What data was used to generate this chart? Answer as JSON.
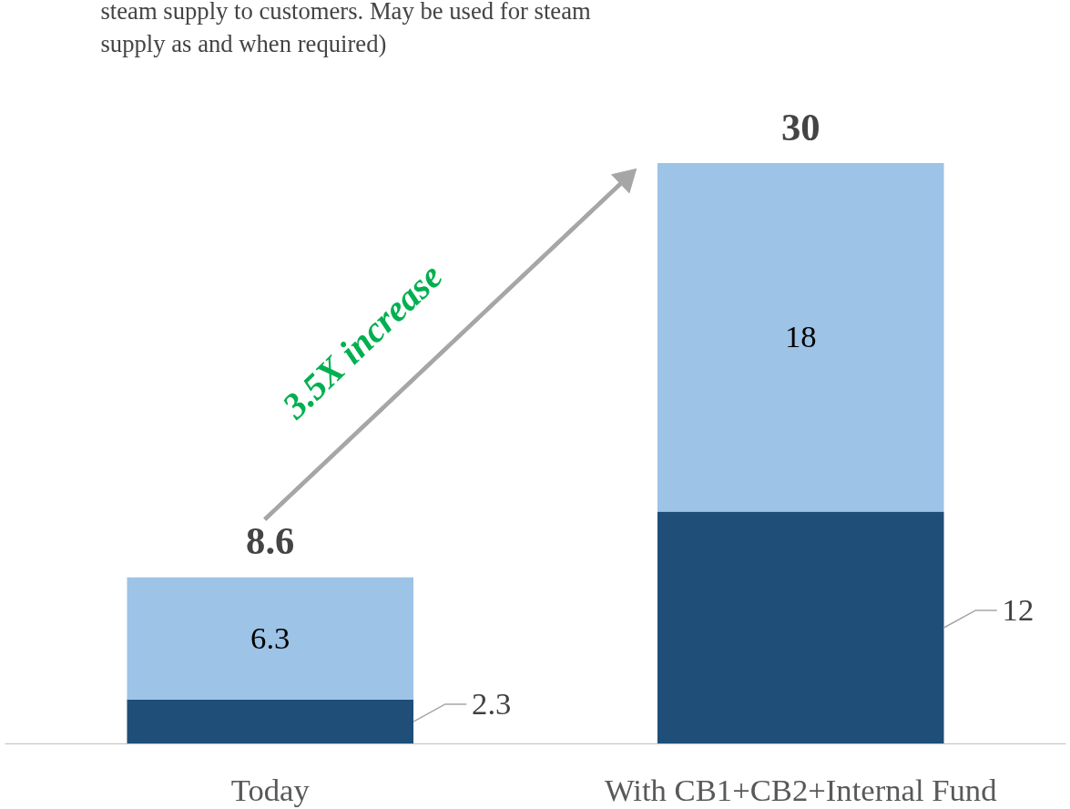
{
  "chart_data": {
    "type": "bar",
    "stacked": true,
    "categories": [
      "Today",
      "With CB1+CB2+Internal Fund"
    ],
    "series": [
      {
        "color": "#1f4e79",
        "values": [
          2.3,
          12
        ]
      },
      {
        "color": "#9dc3e6",
        "values": [
          6.3,
          18
        ]
      }
    ],
    "data_labels": true,
    "totals": [
      "8.6",
      "30"
    ],
    "grid": false,
    "tick_labels": "x",
    "annotations": [
      "steam supply to customers. May be used for steam\nsupply as and when required)",
      "3.5X increase"
    ]
  }
}
